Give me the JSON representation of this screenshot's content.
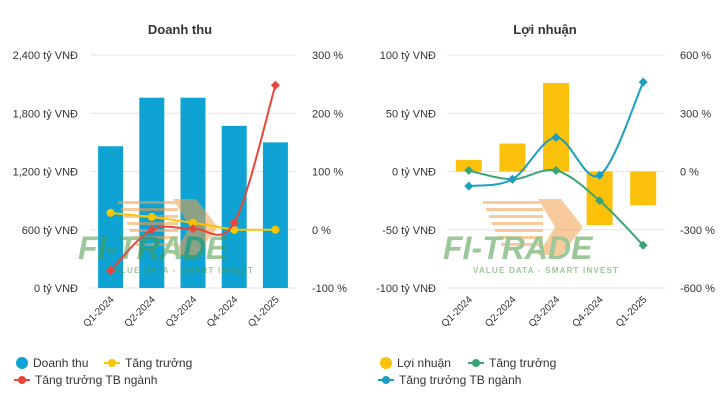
{
  "colors": {
    "revenue": "#0fa3d3",
    "revenue_growth": "#f8c600",
    "revenue_industry": "#e8463a",
    "profit": "#fcc10b",
    "profit_growth": "#3aa574",
    "profit_industry": "#1a9fc0",
    "watermark_orange": "#f5a04a",
    "watermark_green": "#4a9a46"
  },
  "watermark": {
    "brand": "FI-TRADE",
    "tagline": "VALUE DATA - SMART INVEST"
  },
  "chart_data": [
    {
      "type": "bar",
      "title": "Doanh thu",
      "categories": [
        "Q1-2024",
        "Q2-2024",
        "Q3-2024",
        "Q4-2024",
        "Q1-2025"
      ],
      "left_axis": {
        "ticks": [
          "2,400 tỷ VNĐ",
          "1,800 tỷ VNĐ",
          "1,200 tỷ VNĐ",
          "600 tỷ VNĐ",
          "0 tỷ VNĐ"
        ],
        "range": [
          0,
          2400
        ]
      },
      "right_axis": {
        "ticks": [
          "300 %",
          "200 %",
          "100 %",
          "0 %",
          "-100 %"
        ],
        "range": [
          -100,
          300
        ]
      },
      "series": [
        {
          "name": "Doanh thu",
          "kind": "bar",
          "axis": "left",
          "values": [
            1460,
            1960,
            1960,
            1670,
            1500
          ]
        },
        {
          "name": "Tăng trưởng",
          "kind": "line",
          "axis": "right",
          "values": [
            29,
            22,
            12,
            0,
            0
          ]
        },
        {
          "name": "Tăng trưởng TB ngành",
          "kind": "spline",
          "axis": "right",
          "values": [
            -70,
            0,
            2,
            12,
            248
          ]
        }
      ],
      "legend": [
        {
          "label": "Doanh thu",
          "symbol": "circle",
          "color_key": "revenue"
        },
        {
          "label": "Tăng trưởng",
          "symbol": "line-marker",
          "color_key": "revenue_growth"
        },
        {
          "label": "Tăng trưởng TB ngành",
          "symbol": "line-marker",
          "color_key": "revenue_industry"
        }
      ]
    },
    {
      "type": "bar",
      "title": "Lợi nhuận",
      "categories": [
        "Q1-2024",
        "Q2-2024",
        "Q3-2024",
        "Q4-2024",
        "Q1-2025"
      ],
      "left_axis": {
        "ticks": [
          "100 tỷ VNĐ",
          "50 tỷ VNĐ",
          "0 tỷ VNĐ",
          "-50 tỷ VNĐ",
          "-100 tỷ VNĐ"
        ],
        "range": [
          -100,
          100
        ]
      },
      "right_axis": {
        "ticks": [
          "600 %",
          "300 %",
          "0 %",
          "-300 %",
          "-600 %"
        ],
        "range": [
          -600,
          600
        ]
      },
      "series": [
        {
          "name": "Lợi nhuận",
          "kind": "bar",
          "axis": "left",
          "values": [
            10,
            24,
            76,
            -46,
            -29
          ]
        },
        {
          "name": "Tăng trưởng",
          "kind": "spline",
          "axis": "right",
          "values": [
            5,
            -40,
            5,
            -150,
            -380
          ]
        },
        {
          "name": "Tăng trưởng TB ngành",
          "kind": "spline",
          "axis": "right",
          "values": [
            -75,
            -40,
            175,
            -20,
            460
          ]
        }
      ],
      "legend": [
        {
          "label": "Lợi nhuận",
          "symbol": "circle",
          "color_key": "profit"
        },
        {
          "label": "Tăng trưởng",
          "symbol": "line-marker",
          "color_key": "profit_growth"
        },
        {
          "label": "Tăng trưởng TB ngành",
          "symbol": "line-marker",
          "color_key": "profit_industry"
        }
      ]
    }
  ]
}
